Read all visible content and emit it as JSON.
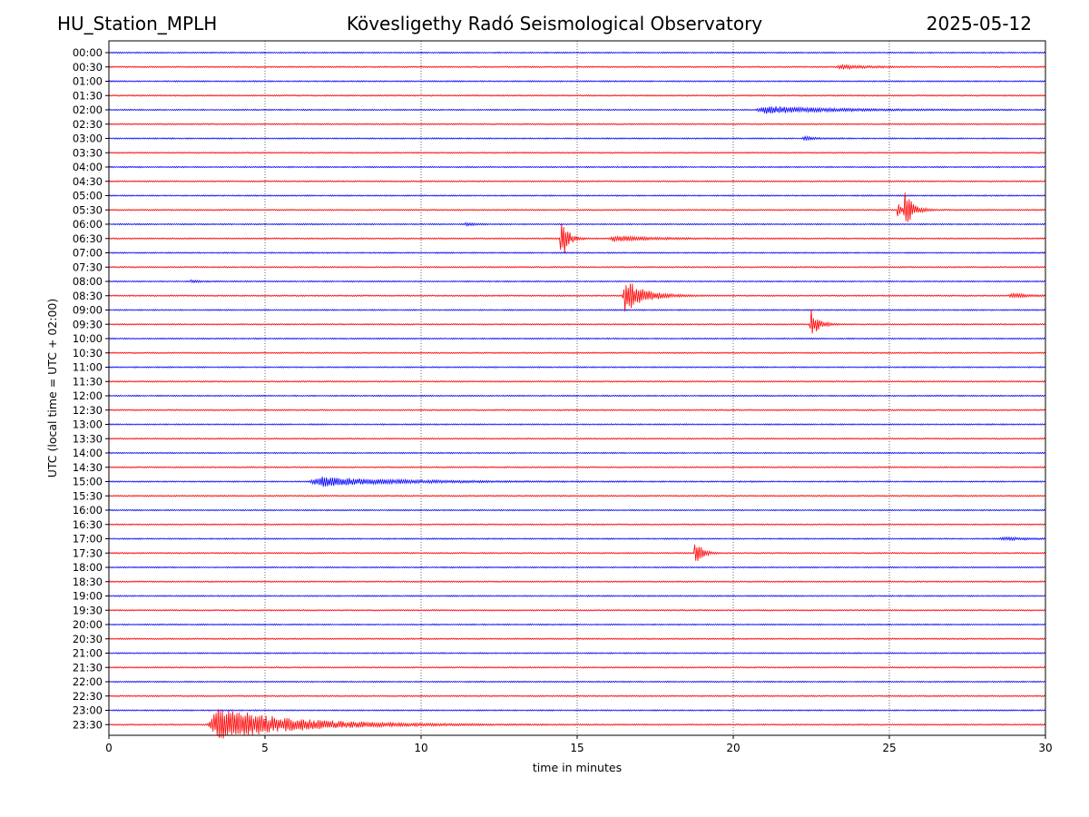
{
  "header": {
    "station": "HU_Station_MPLH",
    "title": "Kövesligethy Radó Seismological Observatory",
    "date": "2025-05-12"
  },
  "chart_data": {
    "type": "line",
    "title": "Kövesligethy Radó Seismological Observatory",
    "xlabel": "time in minutes",
    "ylabel": "UTC (local time = UTC + 02:00)",
    "xlim": [
      0,
      30
    ],
    "xticks": [
      0,
      5,
      10,
      15,
      20,
      25,
      30
    ],
    "grid": "vertical dotted at each x tick",
    "colors": {
      "even_rows": "#0000ff",
      "odd_rows": "#ff0000"
    },
    "rows": [
      "00:00",
      "00:30",
      "01:00",
      "01:30",
      "02:00",
      "02:30",
      "03:00",
      "03:30",
      "04:00",
      "04:30",
      "05:00",
      "05:30",
      "06:00",
      "06:30",
      "07:00",
      "07:30",
      "08:00",
      "08:30",
      "09:00",
      "09:30",
      "10:00",
      "10:30",
      "11:00",
      "11:30",
      "12:00",
      "12:30",
      "13:00",
      "13:30",
      "14:00",
      "14:30",
      "15:00",
      "15:30",
      "16:00",
      "16:30",
      "17:00",
      "17:30",
      "18:00",
      "18:30",
      "19:00",
      "19:30",
      "20:00",
      "20:30",
      "21:00",
      "21:30",
      "22:00",
      "22:30",
      "23:00",
      "23:30"
    ],
    "events": [
      {
        "row": "00:30",
        "start_min": 23.3,
        "peak_amp": 0.25,
        "duration_min": 1.8
      },
      {
        "row": "02:00",
        "start_min": 20.7,
        "peak_amp": 0.45,
        "duration_min": 4.5
      },
      {
        "row": "03:00",
        "start_min": 22.2,
        "peak_amp": 0.25,
        "duration_min": 0.8
      },
      {
        "row": "05:30",
        "start_min": 25.25,
        "peak_amp": 1.1,
        "duration_min": 0.25
      },
      {
        "row": "05:30",
        "start_min": 25.45,
        "peak_amp": 3.0,
        "duration_min": 0.5
      },
      {
        "row": "06:00",
        "start_min": 11.4,
        "peak_amp": 0.2,
        "duration_min": 0.5
      },
      {
        "row": "06:30",
        "start_min": 14.45,
        "peak_amp": 3.6,
        "duration_min": 0.4
      },
      {
        "row": "06:30",
        "start_min": 16.0,
        "peak_amp": 0.35,
        "duration_min": 2.5
      },
      {
        "row": "08:00",
        "start_min": 2.6,
        "peak_amp": 0.2,
        "duration_min": 0.4
      },
      {
        "row": "08:30",
        "start_min": 16.45,
        "peak_amp": 2.4,
        "duration_min": 1.2
      },
      {
        "row": "08:30",
        "start_min": 28.8,
        "peak_amp": 0.3,
        "duration_min": 1.2
      },
      {
        "row": "09:30",
        "start_min": 22.45,
        "peak_amp": 2.0,
        "duration_min": 0.5
      },
      {
        "row": "15:00",
        "start_min": 6.4,
        "peak_amp": 0.6,
        "duration_min": 5.0
      },
      {
        "row": "17:00",
        "start_min": 28.5,
        "peak_amp": 0.2,
        "duration_min": 1.5
      },
      {
        "row": "17:30",
        "start_min": 18.75,
        "peak_amp": 2.0,
        "duration_min": 0.4
      },
      {
        "row": "23:30",
        "start_min": 3.15,
        "peak_amp": 2.2,
        "duration_min": 5.0
      }
    ]
  }
}
